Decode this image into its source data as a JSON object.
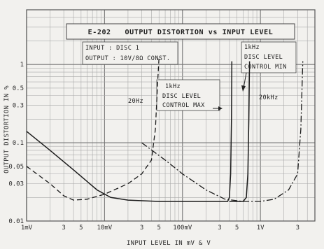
{
  "chart_data": {
    "type": "line",
    "title": "E-202   OUTPUT DISTORTION vs INPUT LEVEL",
    "xlabel": "INPUT LEVEL IN mV & V",
    "ylabel": "OUTPUT DISTORTION IN %",
    "x_scale": "log",
    "y_scale": "log",
    "xlim": [
      0.001,
      5
    ],
    "ylim": [
      0.01,
      5
    ],
    "grid": true,
    "conditions": [
      "INPUT : DISC 1",
      "OUTPUT : 10V/8Ω CONST."
    ],
    "x_ticks": [
      {
        "value": 0.001,
        "label": "1mV"
      },
      {
        "value": 0.003,
        "label": "3"
      },
      {
        "value": 0.005,
        "label": "5"
      },
      {
        "value": 0.01,
        "label": "10mV"
      },
      {
        "value": 0.03,
        "label": "3"
      },
      {
        "value": 0.05,
        "label": "5"
      },
      {
        "value": 0.1,
        "label": "100mV"
      },
      {
        "value": 0.3,
        "label": "3"
      },
      {
        "value": 0.5,
        "label": "5"
      },
      {
        "value": 1,
        "label": "1V"
      },
      {
        "value": 3,
        "label": "3"
      }
    ],
    "y_ticks": [
      {
        "value": 0.01,
        "label": "0.01"
      },
      {
        "value": 0.03,
        "label": "0.03"
      },
      {
        "value": 0.05,
        "label": "0.05"
      },
      {
        "value": 0.1,
        "label": "0.1"
      },
      {
        "value": 0.3,
        "label": "0.3"
      },
      {
        "value": 0.5,
        "label": "0.5"
      },
      {
        "value": 1,
        "label": "1"
      }
    ],
    "series": [
      {
        "name": "1kHz DISC LEVEL CONTROL MAX",
        "style": "solid",
        "points": [
          [
            0.001,
            0.14
          ],
          [
            0.002,
            0.08
          ],
          [
            0.004,
            0.045
          ],
          [
            0.008,
            0.025
          ],
          [
            0.012,
            0.02
          ],
          [
            0.02,
            0.0185
          ],
          [
            0.05,
            0.0178
          ],
          [
            0.1,
            0.0178
          ],
          [
            0.2,
            0.0178
          ],
          [
            0.38,
            0.0178
          ],
          [
            0.4,
            0.02
          ],
          [
            0.415,
            0.04
          ],
          [
            0.425,
            0.2
          ],
          [
            0.43,
            1.1
          ]
        ]
      },
      {
        "name": "1kHz DISC LEVEL CONTROL MIN",
        "style": "solid",
        "points": [
          [
            0.4,
            0.0178
          ],
          [
            0.6,
            0.0178
          ],
          [
            0.66,
            0.02
          ],
          [
            0.69,
            0.04
          ],
          [
            0.71,
            0.2
          ],
          [
            0.725,
            1.1
          ]
        ]
      },
      {
        "name": "20Hz",
        "style": "dash",
        "points": [
          [
            0.001,
            0.05
          ],
          [
            0.002,
            0.03
          ],
          [
            0.003,
            0.021
          ],
          [
            0.004,
            0.0185
          ],
          [
            0.006,
            0.019
          ],
          [
            0.01,
            0.022
          ],
          [
            0.02,
            0.03
          ],
          [
            0.03,
            0.04
          ],
          [
            0.04,
            0.06
          ],
          [
            0.045,
            0.15
          ],
          [
            0.048,
            0.6
          ],
          [
            0.05,
            1.2
          ]
        ]
      },
      {
        "name": "20kHz",
        "style": "dashdot",
        "points": [
          [
            0.03,
            0.1
          ],
          [
            0.06,
            0.06
          ],
          [
            0.1,
            0.04
          ],
          [
            0.2,
            0.025
          ],
          [
            0.35,
            0.019
          ],
          [
            0.6,
            0.0178
          ],
          [
            1.0,
            0.0178
          ],
          [
            1.5,
            0.019
          ],
          [
            2.3,
            0.025
          ],
          [
            3,
            0.04
          ],
          [
            3.3,
            0.15
          ],
          [
            3.5,
            1.1
          ]
        ]
      }
    ],
    "annotations": [
      {
        "text": "20Hz"
      },
      {
        "lines": [
          "1kHz",
          "DISC LEVEL",
          "CONTROL MAX"
        ]
      },
      {
        "lines": [
          "1kHz",
          "DISC LEVEL",
          "CONTROL MIN"
        ]
      },
      {
        "text": "20kHz"
      }
    ]
  }
}
